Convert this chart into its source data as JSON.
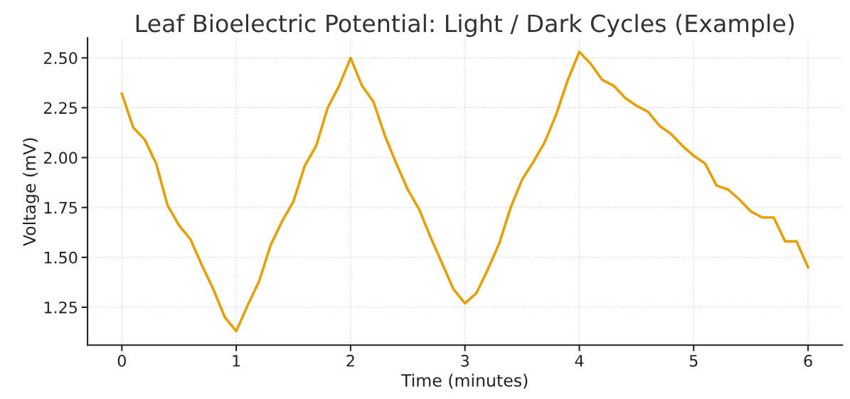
{
  "chart_data": {
    "type": "line",
    "title": "Leaf Bioelectric Potential: Light / Dark Cycles (Example)",
    "xlabel": "Time (minutes)",
    "ylabel": "Voltage (mV)",
    "x": [
      0,
      0.1,
      0.2,
      0.3,
      0.4,
      0.5,
      0.6,
      0.7,
      0.8,
      0.9,
      1,
      1.1,
      1.2,
      1.3,
      1.4,
      1.5,
      1.6,
      1.7,
      1.8,
      1.9,
      2,
      2.1,
      2.2,
      2.3,
      2.4,
      2.5,
      2.6,
      2.7,
      2.8,
      2.9,
      3,
      3.1,
      3.2,
      3.3,
      3.4,
      3.5,
      3.6,
      3.7,
      3.8,
      3.9,
      4,
      4.1,
      4.2,
      4.3,
      4.4,
      4.5,
      4.6,
      4.7,
      4.8,
      4.9,
      5,
      5.1,
      5.2,
      5.3,
      5.4,
      5.5,
      5.6,
      5.7,
      5.8,
      5.9,
      6
    ],
    "series": [
      {
        "color": "#e69f00",
        "values": [
          2.32,
          2.15,
          2.09,
          1.97,
          1.76,
          1.66,
          1.59,
          1.46,
          1.34,
          1.2,
          1.13,
          1.26,
          1.38,
          1.56,
          1.68,
          1.78,
          1.96,
          2.06,
          2.25,
          2.36,
          2.5,
          2.36,
          2.28,
          2.11,
          1.97,
          1.84,
          1.74,
          1.6,
          1.47,
          1.34,
          1.27,
          1.32,
          1.44,
          1.57,
          1.75,
          1.89,
          1.98,
          2.08,
          2.22,
          2.39,
          2.53,
          2.47,
          2.39,
          2.36,
          2.3,
          2.26,
          2.23,
          2.16,
          2.12,
          2.06,
          2.01,
          1.97,
          1.86,
          1.84,
          1.79,
          1.73,
          1.7,
          1.7,
          1.58,
          1.58,
          1.45
        ]
      }
    ],
    "xlim": [
      -0.3,
      6.3
    ],
    "ylim": [
      1.06,
      2.6
    ],
    "xticks": [
      0,
      1,
      2,
      3,
      4,
      5,
      6
    ],
    "yticks": [
      {
        "value": 1.25,
        "label": "1.25"
      },
      {
        "value": 1.5,
        "label": "1.50"
      },
      {
        "value": 1.75,
        "label": "1.75"
      },
      {
        "value": 2.0,
        "label": "2.00"
      },
      {
        "value": 2.25,
        "label": "2.25"
      },
      {
        "value": 2.5,
        "label": "2.50"
      }
    ],
    "grid": true,
    "line_style": "solid",
    "marker": "none"
  }
}
